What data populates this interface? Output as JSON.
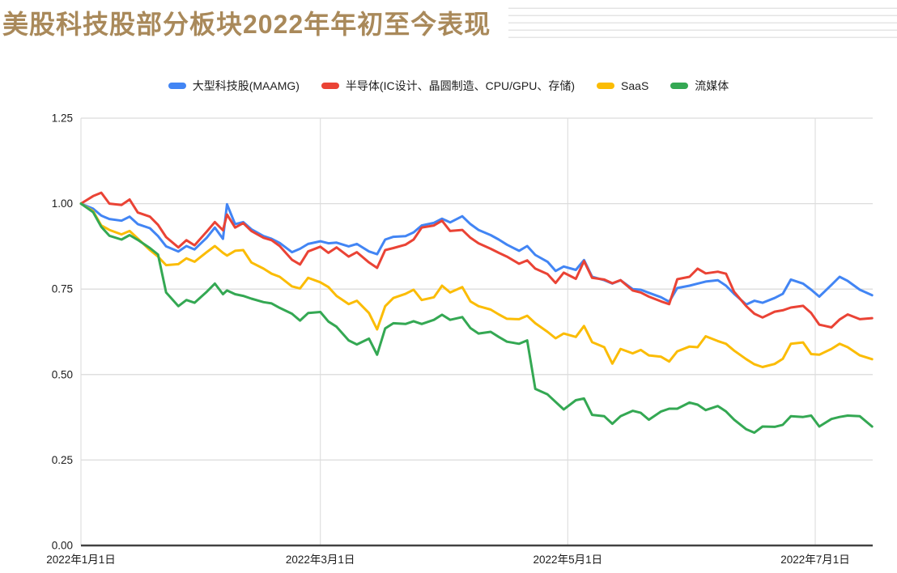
{
  "page": {
    "title": "美股科技股部分板块2022年年初至今表现",
    "title_color": "#a9895a"
  },
  "chart_data": {
    "type": "line",
    "title": "美股科技股部分板块2022年年初至今表现",
    "grid": true,
    "legend_position": "top",
    "ylim": [
      0,
      1.25
    ],
    "y_axis": {
      "ticks": [
        0,
        0.25,
        0.5,
        0.75,
        1.0,
        1.25
      ],
      "tick_labels": [
        "0.00",
        "0.25",
        "0.50",
        "0.75",
        "1.00",
        "1.25"
      ]
    },
    "x_axis": {
      "tick_days": [
        0,
        59,
        120,
        181
      ],
      "tick_labels": [
        "2022年1月1日",
        "2022年3月1日",
        "2022年5月1日",
        "2022年7月1日"
      ]
    },
    "x_days": [
      0,
      3,
      5,
      7,
      10,
      12,
      14,
      17,
      19,
      21,
      24,
      26,
      28,
      31,
      33,
      35,
      36,
      38,
      40,
      42,
      45,
      47,
      49,
      52,
      54,
      56,
      59,
      61,
      63,
      66,
      68,
      71,
      73,
      75,
      77,
      80,
      82,
      84,
      87,
      89,
      91,
      94,
      96,
      98,
      101,
      103,
      105,
      108,
      110,
      112,
      115,
      117,
      119,
      122,
      124,
      126,
      129,
      131,
      133,
      136,
      138,
      140,
      143,
      145,
      147,
      150,
      152,
      154,
      157,
      159,
      161,
      164,
      166,
      168,
      171,
      173,
      175,
      178,
      180,
      182,
      185,
      187,
      189,
      192,
      195
    ],
    "series": [
      {
        "name": "大型科技股(MAAMG)",
        "color": "#4285f4",
        "values": [
          1.0,
          0.985,
          0.965,
          0.955,
          0.95,
          0.962,
          0.94,
          0.928,
          0.905,
          0.875,
          0.86,
          0.876,
          0.866,
          0.9,
          0.93,
          0.897,
          0.998,
          0.94,
          0.946,
          0.925,
          0.905,
          0.897,
          0.885,
          0.858,
          0.868,
          0.882,
          0.89,
          0.884,
          0.886,
          0.875,
          0.882,
          0.86,
          0.852,
          0.895,
          0.903,
          0.905,
          0.916,
          0.936,
          0.944,
          0.956,
          0.945,
          0.963,
          0.94,
          0.923,
          0.908,
          0.895,
          0.88,
          0.862,
          0.876,
          0.85,
          0.83,
          0.803,
          0.816,
          0.806,
          0.835,
          0.786,
          0.776,
          0.766,
          0.776,
          0.75,
          0.748,
          0.739,
          0.726,
          0.713,
          0.753,
          0.76,
          0.766,
          0.772,
          0.776,
          0.76,
          0.736,
          0.705,
          0.716,
          0.71,
          0.724,
          0.736,
          0.778,
          0.766,
          0.748,
          0.728,
          0.762,
          0.786,
          0.774,
          0.748,
          0.732
        ]
      },
      {
        "name": "半导体(IC设计、晶圆制造、CPU/GPU、存储)",
        "color": "#ea4335",
        "values": [
          1.0,
          1.022,
          1.032,
          1.0,
          0.996,
          1.012,
          0.974,
          0.962,
          0.938,
          0.902,
          0.872,
          0.893,
          0.878,
          0.918,
          0.946,
          0.922,
          0.968,
          0.93,
          0.943,
          0.92,
          0.9,
          0.893,
          0.876,
          0.836,
          0.822,
          0.86,
          0.874,
          0.856,
          0.872,
          0.845,
          0.858,
          0.828,
          0.812,
          0.864,
          0.87,
          0.88,
          0.895,
          0.93,
          0.936,
          0.95,
          0.92,
          0.923,
          0.9,
          0.884,
          0.868,
          0.856,
          0.845,
          0.824,
          0.834,
          0.81,
          0.794,
          0.768,
          0.798,
          0.78,
          0.832,
          0.783,
          0.778,
          0.767,
          0.776,
          0.746,
          0.74,
          0.728,
          0.714,
          0.706,
          0.779,
          0.786,
          0.81,
          0.796,
          0.801,
          0.795,
          0.742,
          0.7,
          0.678,
          0.667,
          0.684,
          0.688,
          0.696,
          0.701,
          0.68,
          0.646,
          0.638,
          0.661,
          0.676,
          0.662,
          0.665
        ]
      },
      {
        "name": "SaaS",
        "color": "#fbbc04",
        "values": [
          1.0,
          0.978,
          0.936,
          0.923,
          0.91,
          0.92,
          0.898,
          0.864,
          0.845,
          0.82,
          0.823,
          0.84,
          0.83,
          0.858,
          0.876,
          0.856,
          0.848,
          0.862,
          0.864,
          0.828,
          0.81,
          0.795,
          0.786,
          0.758,
          0.752,
          0.783,
          0.77,
          0.756,
          0.73,
          0.706,
          0.716,
          0.68,
          0.632,
          0.7,
          0.724,
          0.736,
          0.748,
          0.718,
          0.726,
          0.76,
          0.74,
          0.756,
          0.714,
          0.7,
          0.69,
          0.676,
          0.663,
          0.662,
          0.672,
          0.65,
          0.625,
          0.606,
          0.62,
          0.61,
          0.642,
          0.595,
          0.58,
          0.532,
          0.575,
          0.562,
          0.572,
          0.556,
          0.552,
          0.538,
          0.568,
          0.582,
          0.58,
          0.612,
          0.598,
          0.59,
          0.57,
          0.545,
          0.53,
          0.522,
          0.531,
          0.546,
          0.59,
          0.594,
          0.56,
          0.558,
          0.575,
          0.59,
          0.58,
          0.556,
          0.545
        ]
      },
      {
        "name": "流媒体",
        "color": "#34a853",
        "values": [
          1.0,
          0.975,
          0.932,
          0.906,
          0.895,
          0.908,
          0.894,
          0.87,
          0.851,
          0.74,
          0.7,
          0.718,
          0.71,
          0.742,
          0.766,
          0.735,
          0.746,
          0.735,
          0.73,
          0.722,
          0.712,
          0.708,
          0.695,
          0.678,
          0.658,
          0.68,
          0.683,
          0.655,
          0.64,
          0.6,
          0.588,
          0.605,
          0.558,
          0.635,
          0.65,
          0.648,
          0.656,
          0.648,
          0.66,
          0.675,
          0.66,
          0.668,
          0.636,
          0.62,
          0.625,
          0.61,
          0.596,
          0.59,
          0.6,
          0.458,
          0.442,
          0.42,
          0.398,
          0.425,
          0.43,
          0.382,
          0.378,
          0.356,
          0.378,
          0.394,
          0.388,
          0.368,
          0.392,
          0.4,
          0.4,
          0.418,
          0.412,
          0.396,
          0.408,
          0.392,
          0.368,
          0.34,
          0.33,
          0.348,
          0.347,
          0.353,
          0.378,
          0.376,
          0.38,
          0.348,
          0.37,
          0.376,
          0.38,
          0.378,
          0.348
        ]
      }
    ],
    "colors": {
      "gridline": "#dcdcdc",
      "vertical_gridline": "#e2e2e2",
      "axis_line": "#424242",
      "axis_text": "#1c1c1c"
    }
  }
}
